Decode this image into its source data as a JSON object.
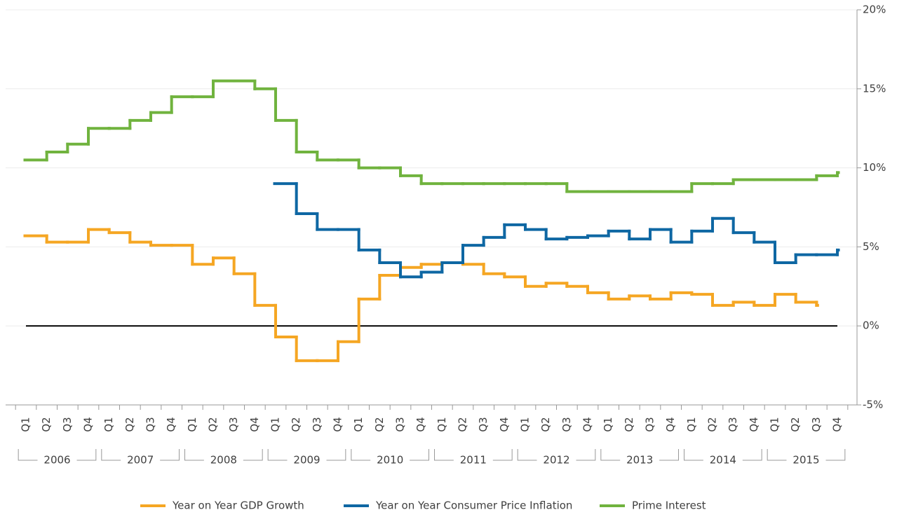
{
  "chart_data": {
    "type": "step-line",
    "categories": [
      "Q1",
      "Q2",
      "Q3",
      "Q4",
      "Q1",
      "Q2",
      "Q3",
      "Q4",
      "Q1",
      "Q2",
      "Q3",
      "Q4",
      "Q1",
      "Q2",
      "Q3",
      "Q4",
      "Q1",
      "Q2",
      "Q3",
      "Q4",
      "Q1",
      "Q2",
      "Q3",
      "Q4",
      "Q1",
      "Q2",
      "Q3",
      "Q4",
      "Q1",
      "Q2",
      "Q3",
      "Q4",
      "Q1",
      "Q2",
      "Q3",
      "Q4",
      "Q1",
      "Q2",
      "Q3",
      "Q4"
    ],
    "category_groups": [
      "2006",
      "2007",
      "2008",
      "2009",
      "2010",
      "2011",
      "2012",
      "2013",
      "2014",
      "2015"
    ],
    "series": [
      {
        "name": "Year on Year GDP Growth",
        "color": "#f5a623",
        "values": [
          5.7,
          5.3,
          5.3,
          6.1,
          5.9,
          5.3,
          5.1,
          5.1,
          3.9,
          4.3,
          3.3,
          1.3,
          -0.7,
          -2.2,
          -2.2,
          -1.0,
          1.7,
          3.2,
          3.7,
          3.9,
          4.0,
          3.9,
          3.3,
          3.1,
          2.5,
          2.7,
          2.5,
          2.1,
          1.7,
          1.9,
          1.7,
          2.1,
          2.0,
          1.3,
          1.5,
          1.3,
          2.0,
          1.5,
          1.3,
          null
        ]
      },
      {
        "name": "Year on Year Consumer Price Inflation",
        "color": "#0e67a3",
        "values": [
          null,
          null,
          null,
          null,
          null,
          null,
          null,
          null,
          null,
          null,
          null,
          null,
          9.0,
          7.1,
          6.1,
          6.1,
          4.8,
          4.0,
          3.1,
          3.4,
          4.0,
          5.1,
          5.6,
          6.4,
          6.1,
          5.5,
          5.6,
          5.7,
          6.0,
          5.5,
          6.1,
          5.3,
          6.0,
          6.8,
          5.9,
          5.3,
          4.0,
          4.5,
          4.5,
          4.8
        ]
      },
      {
        "name": "Prime Interest",
        "color": "#70b33e",
        "values": [
          10.5,
          11.0,
          11.5,
          12.5,
          12.5,
          13.0,
          13.5,
          14.5,
          14.5,
          15.5,
          15.5,
          15.0,
          13.0,
          11.0,
          10.5,
          10.5,
          10.0,
          10.0,
          9.5,
          9.0,
          9.0,
          9.0,
          9.0,
          9.0,
          9.0,
          9.0,
          8.5,
          8.5,
          8.5,
          8.5,
          8.5,
          8.5,
          9.0,
          9.0,
          9.25,
          9.25,
          9.25,
          9.25,
          9.5,
          9.7
        ]
      }
    ],
    "ylim": [
      -5,
      20
    ],
    "yticks": [
      {
        "value": -5,
        "label": "-5%"
      },
      {
        "value": 0,
        "label": "0%"
      },
      {
        "value": 5,
        "label": "5%"
      },
      {
        "value": 10,
        "label": "10%"
      },
      {
        "value": 15,
        "label": "15%"
      },
      {
        "value": 20,
        "label": "20%"
      }
    ],
    "grid": true,
    "zero_line": true,
    "legend": "bottom"
  }
}
